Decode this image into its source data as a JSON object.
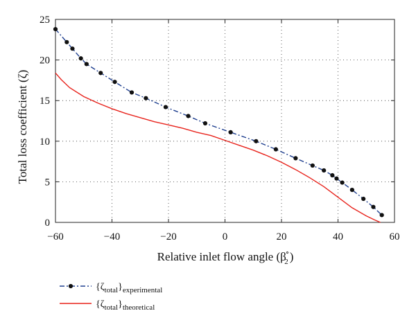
{
  "chart_data": {
    "type": "line",
    "xlabel": "Relative inlet flow angle (β",
    "xlabel_sub": "2",
    "xlabel_sup": "∘",
    "xlabel_close": ")",
    "ylabel": "Total loss coefficient (ζ)",
    "xlim": [
      -60,
      60
    ],
    "ylim": [
      0,
      25
    ],
    "xticks": [
      -60,
      -40,
      -20,
      0,
      20,
      40,
      60
    ],
    "yticks": [
      0,
      5,
      10,
      15,
      20,
      25
    ],
    "xtick_labels": [
      "−60",
      "−40",
      "−20",
      "0",
      "20",
      "40",
      "60"
    ],
    "ytick_labels": [
      "0",
      "5",
      "10",
      "15",
      "20",
      "25"
    ],
    "grid": true,
    "legend_position": "below",
    "series": [
      {
        "name": "{ζtotal}experimental",
        "legend_main": "{ζ",
        "legend_sub": "total",
        "legend_close": "}",
        "legend_after": "experimental",
        "color": "#1f3f8f",
        "style": "dash-dot",
        "markers": true,
        "x": [
          -60,
          -56,
          -54,
          -51,
          -49,
          -44,
          -39,
          -33,
          -28,
          -21,
          -13,
          -7,
          2,
          11,
          18,
          25,
          31,
          35,
          38,
          39.5,
          41.5,
          45,
          49,
          52.5,
          55.5
        ],
        "y": [
          23.8,
          22.2,
          21.4,
          20.2,
          19.5,
          18.4,
          17.3,
          16.0,
          15.3,
          14.2,
          13.1,
          12.2,
          11.1,
          10.0,
          9.0,
          7.9,
          7.0,
          6.4,
          5.8,
          5.4,
          4.9,
          4.0,
          2.9,
          1.9,
          0.9
        ]
      },
      {
        "name": "{ζtotal}theoretical",
        "legend_main": "{ζ",
        "legend_sub": "total",
        "legend_close": "}",
        "legend_after": "theoretical",
        "color": "#e8231c",
        "style": "solid",
        "markers": false,
        "x": [
          -60,
          -58,
          -55,
          -50,
          -45,
          -40,
          -35,
          -30,
          -25,
          -20,
          -15,
          -10,
          -5,
          0,
          5,
          10,
          15,
          20,
          25,
          30,
          35,
          40,
          45,
          50,
          53,
          55
        ],
        "y": [
          18.4,
          17.6,
          16.6,
          15.5,
          14.7,
          14.0,
          13.4,
          12.9,
          12.4,
          12.0,
          11.6,
          11.1,
          10.7,
          10.1,
          9.5,
          8.9,
          8.2,
          7.4,
          6.5,
          5.5,
          4.4,
          3.1,
          1.8,
          0.8,
          0.3,
          0.0
        ]
      }
    ]
  }
}
